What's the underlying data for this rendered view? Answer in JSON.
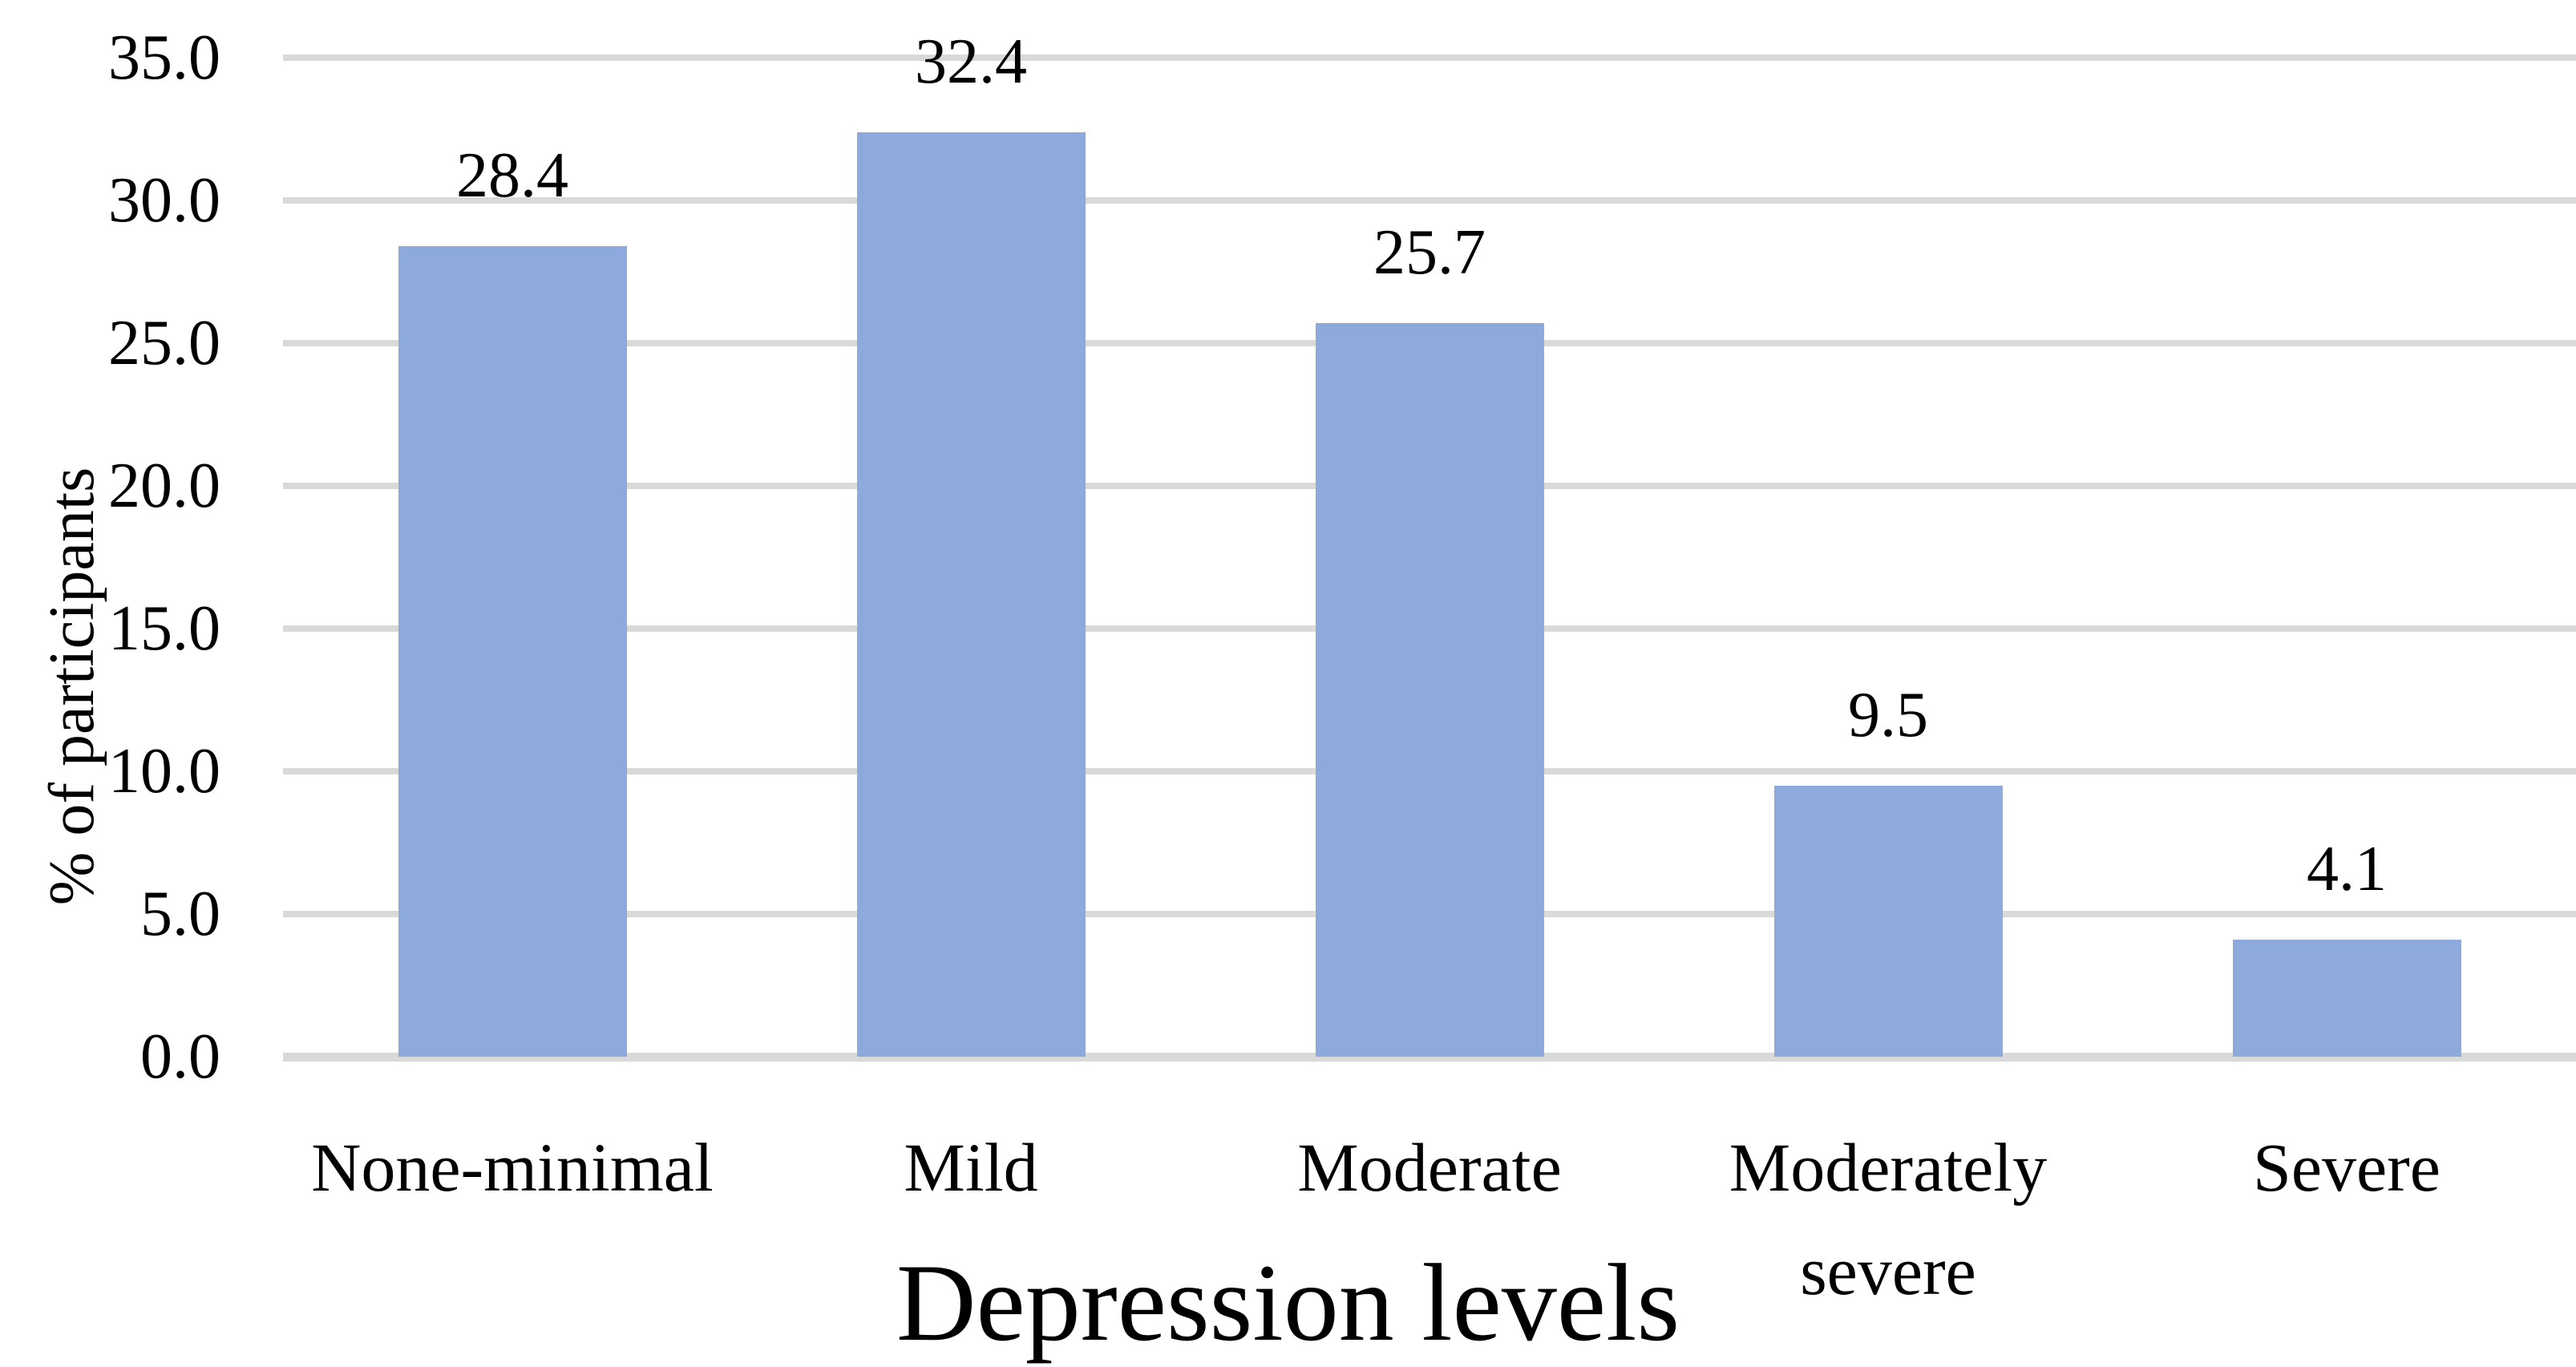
{
  "chart_data": {
    "type": "bar",
    "title": "",
    "xlabel": "Depression levels",
    "ylabel": "% of participants",
    "categories": [
      "None-minimal",
      "Mild",
      "Moderate",
      "Moderately severe",
      "Severe"
    ],
    "values": [
      28.4,
      32.4,
      25.7,
      9.5,
      4.1
    ],
    "value_labels": [
      "28.4",
      "32.4",
      "25.7",
      "9.5",
      "4.1"
    ],
    "y_ticks": [
      "0.0",
      "5.0",
      "10.0",
      "15.0",
      "20.0",
      "25.0",
      "30.0",
      "35.0"
    ],
    "y_tick_values": [
      0,
      5,
      10,
      15,
      20,
      25,
      30,
      35
    ],
    "ylim": [
      0,
      35
    ],
    "grid": "horizontal",
    "legend_position": "none",
    "colors": {
      "bar": "#8EA9DB",
      "gridline": "#D9D9D9",
      "baseline": "#D9D9D9",
      "text": "#000000",
      "background": "#FFFFFF"
    }
  }
}
